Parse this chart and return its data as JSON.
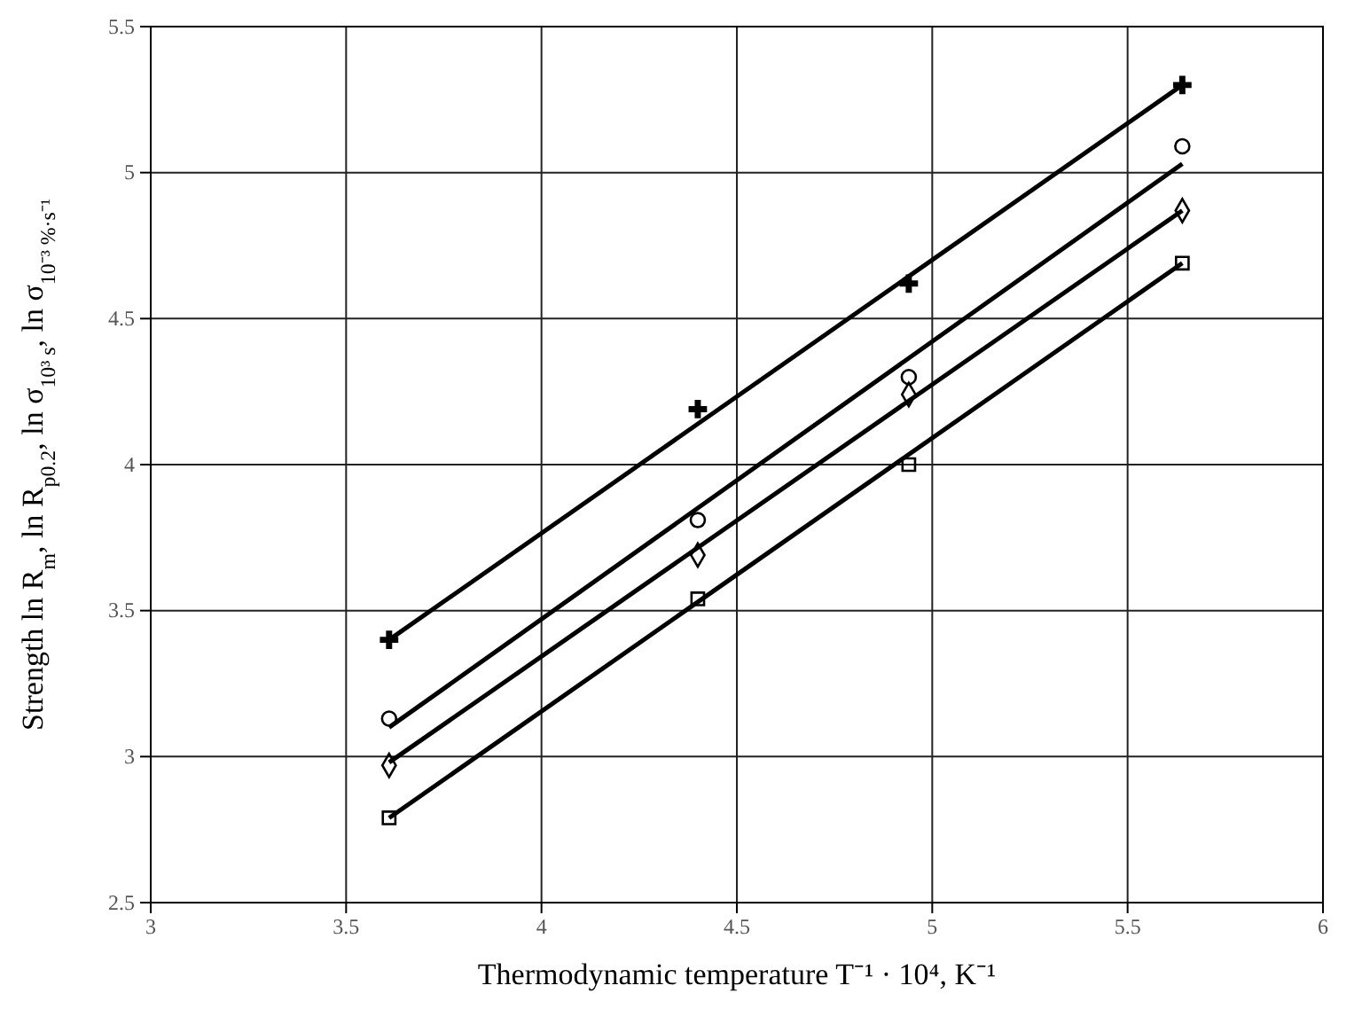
{
  "chart_data": {
    "type": "scatter",
    "xlabel": "Thermodynamic temperature  T⁻¹ · 10⁴, K⁻¹",
    "ylabel": "Strength  ln R$_{m}$, ln R$_{p0.2}$, ln σ$_{10³ s}$, ln σ$_{10⁻³ %·s⁻¹}$",
    "xlim": [
      3,
      6
    ],
    "xticks": [
      3,
      3.5,
      4,
      4.5,
      5,
      5.5,
      6
    ],
    "ylim": [
      2.5,
      5.5
    ],
    "yticks": [
      2.5,
      3,
      3.5,
      4,
      4.5,
      5,
      5.5
    ],
    "grid": true,
    "series": [
      {
        "marker": "cross",
        "color": "#000000",
        "x": [
          3.61,
          4.4,
          4.94,
          5.64
        ],
        "values": [
          3.4,
          4.19,
          4.62,
          5.3
        ]
      },
      {
        "marker": "circle",
        "color": "#000000",
        "x": [
          3.61,
          4.4,
          4.94,
          5.64
        ],
        "values": [
          3.13,
          3.81,
          4.3,
          5.09
        ]
      },
      {
        "marker": "diamond",
        "color": "#000000",
        "x": [
          3.61,
          4.4,
          4.94,
          5.64
        ],
        "values": [
          2.97,
          3.69,
          4.24,
          4.87
        ]
      },
      {
        "marker": "square",
        "color": "#000000",
        "x": [
          3.61,
          4.4,
          4.94,
          5.64
        ],
        "values": [
          2.79,
          3.54,
          4.0,
          4.69
        ]
      },
      {
        "type": "line",
        "marker": "none",
        "line_style": "solid",
        "color": "#000000",
        "x": [
          3.61,
          5.64
        ],
        "values": [
          3.4,
          5.3
        ]
      },
      {
        "type": "line",
        "marker": "none",
        "line_style": "solid",
        "color": "#000000",
        "x": [
          3.61,
          5.64
        ],
        "values": [
          3.1,
          5.03
        ]
      },
      {
        "type": "line",
        "marker": "none",
        "line_style": "solid",
        "color": "#000000",
        "x": [
          3.61,
          5.64
        ],
        "values": [
          2.98,
          4.87
        ]
      },
      {
        "type": "line",
        "marker": "none",
        "line_style": "solid",
        "color": "#000000",
        "x": [
          3.61,
          5.64
        ],
        "values": [
          2.79,
          4.69
        ]
      }
    ]
  }
}
